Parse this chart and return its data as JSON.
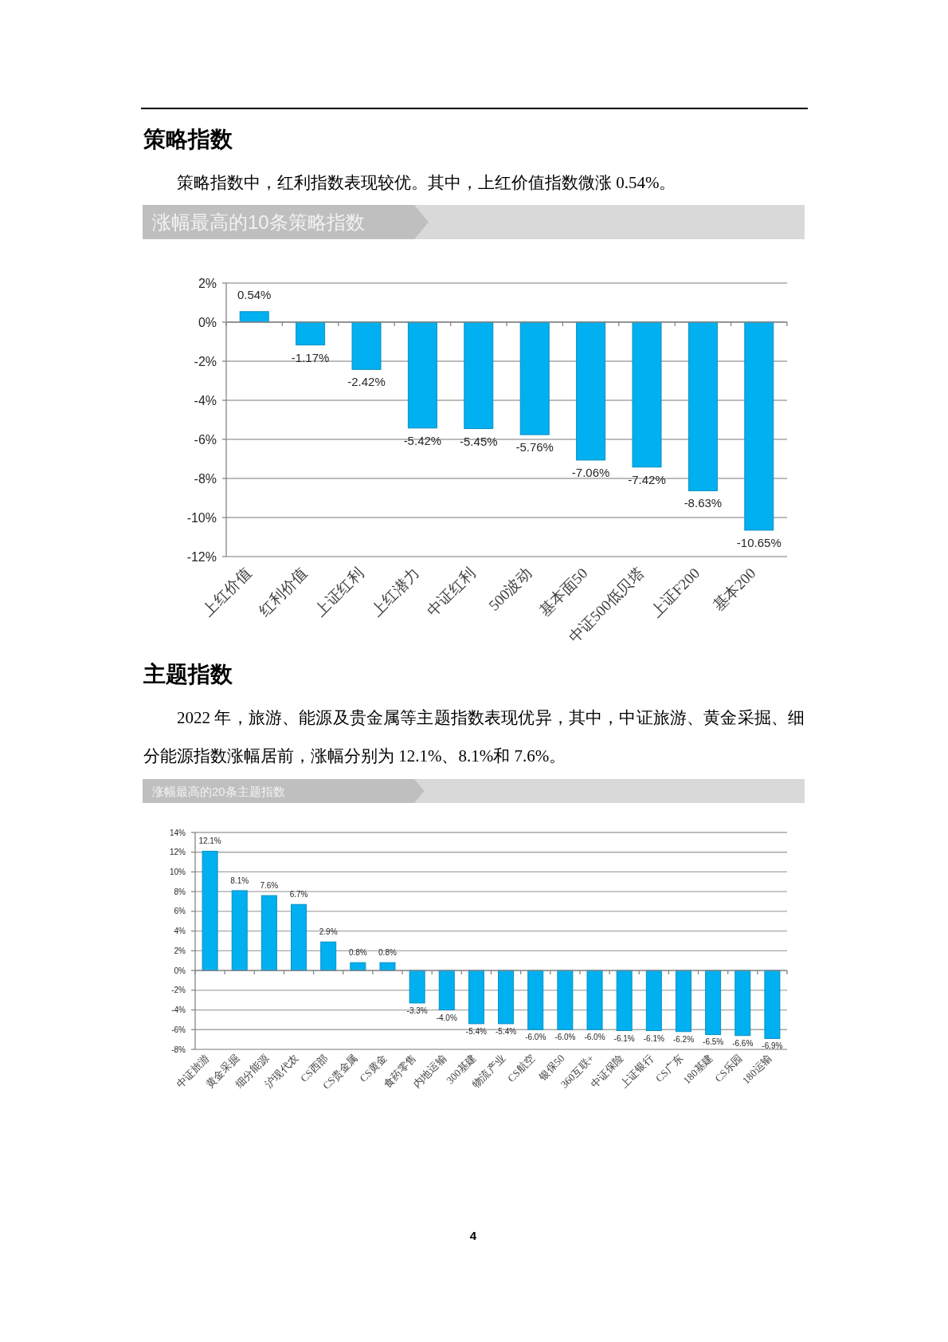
{
  "chart_data": [
    {
      "type": "bar",
      "title": "涨幅最高的10条策略指数",
      "annotations": [
        "策略指数",
        "策略指数中，红利指数表现较优。其中，上红价值指数微涨 0.54%。"
      ],
      "categories": [
        "上红价值",
        "红利价值",
        "上证红利",
        "上红潜力",
        "中证红利",
        "500波动",
        "基本面50",
        "中证500低贝塔",
        "上证F200",
        "基本200"
      ],
      "values": [
        0.54,
        -1.17,
        -2.42,
        -5.42,
        -5.45,
        -5.76,
        -7.06,
        -7.42,
        -8.63,
        -10.65
      ],
      "value_labels": [
        "0.54%",
        "-1.17%",
        "-2.42%",
        "-5.42%",
        "-5.45%",
        "-5.76%",
        "-7.06%",
        "-7.42%",
        "-8.63%",
        "-10.65%"
      ],
      "color": "#00b0f0",
      "ylim": [
        -12,
        2
      ],
      "yticks": [
        {
          "value": -12,
          "label": "-12%"
        },
        {
          "value": -10,
          "label": "-10%"
        },
        {
          "value": -8,
          "label": "-8%"
        },
        {
          "value": -6,
          "label": "-6%"
        },
        {
          "value": -4,
          "label": "-4%"
        },
        {
          "value": -2,
          "label": "-2%"
        },
        {
          "value": 0,
          "label": "0%"
        },
        {
          "value": 2,
          "label": "2%"
        }
      ],
      "grid": "y"
    },
    {
      "type": "bar",
      "title": "涨幅最高的20条主题指数",
      "annotations": [
        "主题指数",
        "2022 年，旅游、能源及贵金属等主题指数表现优异，其中，中证旅游、黄金采掘、细分能源指数涨幅居前，涨幅分别为 12.1%、8.1%和 7.6%。",
        "4"
      ],
      "categories": [
        "中证旅游",
        "黄金采掘",
        "细分能源",
        "沪现代农",
        "CS西部",
        "CS贵金属",
        "CS黄金",
        "食药零售",
        "内地运输",
        "300基建",
        "物流产业",
        "CS航空",
        "银保50",
        "360互联+",
        "中证保险",
        "上证银行",
        "CS广东",
        "180基建",
        "CS乐园",
        "180运输"
      ],
      "values": [
        12.1,
        8.1,
        7.6,
        6.7,
        2.9,
        0.8,
        0.8,
        -3.3,
        -4.0,
        -5.4,
        -5.4,
        -6.0,
        -6.0,
        -6.0,
        -6.1,
        -6.1,
        -6.2,
        -6.5,
        -6.6,
        -6.9
      ],
      "value_labels": [
        "12.1%",
        "8.1%",
        "7.6%",
        "6.7%",
        "2.9%",
        "0.8%",
        "0.8%",
        "-3.3%",
        "-4.0%",
        "-5.4%",
        "-5.4%",
        "-6.0%",
        "-6.0%",
        "-6.0%",
        "-6.1%",
        "-6.1%",
        "-6.2%",
        "-6.5%",
        "-6.6%",
        "-6.9%"
      ],
      "color": "#00b0f0",
      "ylim": [
        -8,
        14
      ],
      "yticks": [
        {
          "value": -8,
          "label": "-8%"
        },
        {
          "value": -6,
          "label": "-6%"
        },
        {
          "value": -4,
          "label": "-4%"
        },
        {
          "value": -2,
          "label": "-2%"
        },
        {
          "value": 0,
          "label": "0%"
        },
        {
          "value": 2,
          "label": "2%"
        },
        {
          "value": 4,
          "label": "4%"
        },
        {
          "value": 6,
          "label": "6%"
        },
        {
          "value": 8,
          "label": "8%"
        },
        {
          "value": 10,
          "label": "10%"
        },
        {
          "value": 12,
          "label": "12%"
        },
        {
          "value": 14,
          "label": "14%"
        }
      ],
      "grid": "y"
    }
  ]
}
